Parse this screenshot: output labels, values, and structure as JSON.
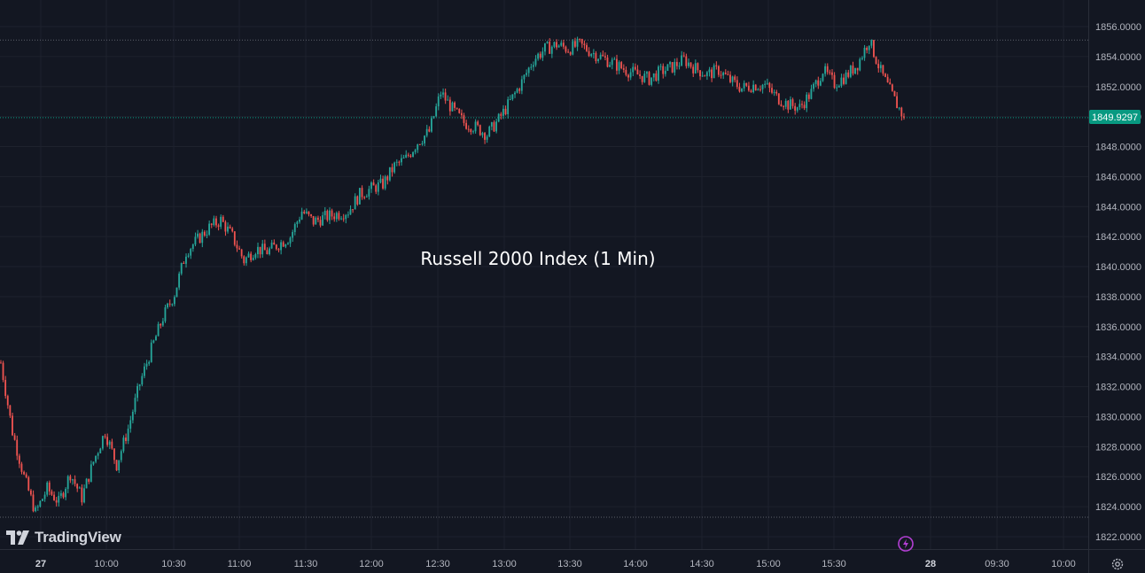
{
  "chart_data": {
    "type": "line",
    "title": "Russell 2000 Index (1 Min)",
    "xlabel": "",
    "ylabel": "",
    "last_price": "1849.9297",
    "y_ticks": [
      "1856.0000",
      "1854.0000",
      "1852.0000",
      "1850.0000",
      "1848.0000",
      "1846.0000",
      "1844.0000",
      "1842.0000",
      "1840.0000",
      "1838.0000",
      "1836.0000",
      "1834.0000",
      "1832.0000",
      "1830.0000",
      "1828.0000",
      "1826.0000",
      "1824.0000",
      "1822.0000"
    ],
    "y_tick_values": [
      1856,
      1854,
      1852,
      1850,
      1848,
      1846,
      1844,
      1842,
      1840,
      1838,
      1836,
      1834,
      1832,
      1830,
      1828,
      1826,
      1824,
      1822
    ],
    "x_ticks": [
      "27",
      "10:00",
      "10:30",
      "11:00",
      "11:30",
      "12:00",
      "12:30",
      "13:00",
      "13:30",
      "14:00",
      "14:30",
      "15:00",
      "15:30",
      "28",
      "09:30",
      "10:00"
    ],
    "x_tick_bold": [
      true,
      false,
      false,
      false,
      false,
      false,
      false,
      false,
      false,
      false,
      false,
      false,
      false,
      true,
      false,
      false
    ],
    "ylim": [
      1821.2,
      1857.7
    ],
    "high_level": 1855.1,
    "low_level": 1823.3,
    "x": [
      "09:30",
      "09:35",
      "09:40",
      "09:45",
      "09:50",
      "09:55",
      "10:00",
      "10:05",
      "10:10",
      "10:15",
      "10:20",
      "10:25",
      "10:30",
      "10:35",
      "10:40",
      "10:45",
      "10:50",
      "10:55",
      "11:00",
      "11:05",
      "11:10",
      "11:15",
      "11:20",
      "11:25",
      "11:30",
      "11:35",
      "11:40",
      "11:45",
      "11:50",
      "11:55",
      "12:00",
      "12:05",
      "12:10",
      "12:15",
      "12:20",
      "12:25",
      "12:30",
      "12:35",
      "12:40",
      "12:45",
      "12:50",
      "12:55",
      "13:00",
      "13:05",
      "13:10",
      "13:15",
      "13:20",
      "13:25",
      "13:30",
      "13:35",
      "13:40",
      "13:45",
      "13:50",
      "13:55",
      "14:00",
      "14:05",
      "14:10",
      "14:15",
      "14:20",
      "14:25",
      "14:30",
      "14:35",
      "14:40",
      "14:45",
      "14:50",
      "14:55",
      "15:00",
      "15:05",
      "15:10",
      "15:15",
      "15:20",
      "15:25",
      "15:30",
      "15:35",
      "15:40",
      "15:45",
      "15:50",
      "15:55",
      "16:00"
    ],
    "series": [
      {
        "values": [
          1833.6,
          1829.0,
          1826.0,
          1823.6,
          1825.2,
          1824.3,
          1826.2,
          1824.6,
          1827.0,
          1829.0,
          1826.8,
          1829.2,
          1832.2,
          1834.5,
          1836.6,
          1838.2,
          1841.0,
          1841.8,
          1842.6,
          1843.1,
          1842.0,
          1840.4,
          1841.2,
          1841.0,
          1841.5,
          1842.0,
          1843.7,
          1843.0,
          1843.3,
          1843.5,
          1843.7,
          1844.8,
          1845.2,
          1845.5,
          1846.7,
          1847.2,
          1848.3,
          1849.0,
          1851.6,
          1850.5,
          1849.6,
          1849.3,
          1848.8,
          1849.8,
          1851.0,
          1852.3,
          1853.8,
          1854.5,
          1854.8,
          1854.5,
          1854.8,
          1854.3,
          1853.9,
          1853.5,
          1853.1,
          1852.8,
          1852.5,
          1853.0,
          1853.3,
          1853.8,
          1853.2,
          1852.8,
          1853.1,
          1852.4,
          1851.9,
          1852.1,
          1852.1,
          1851.3,
          1850.8,
          1850.6,
          1851.6,
          1853.1,
          1852.2,
          1852.7,
          1853.5,
          1855.1,
          1853.0,
          1851.4,
          1849.93
        ]
      }
    ]
  }
}
